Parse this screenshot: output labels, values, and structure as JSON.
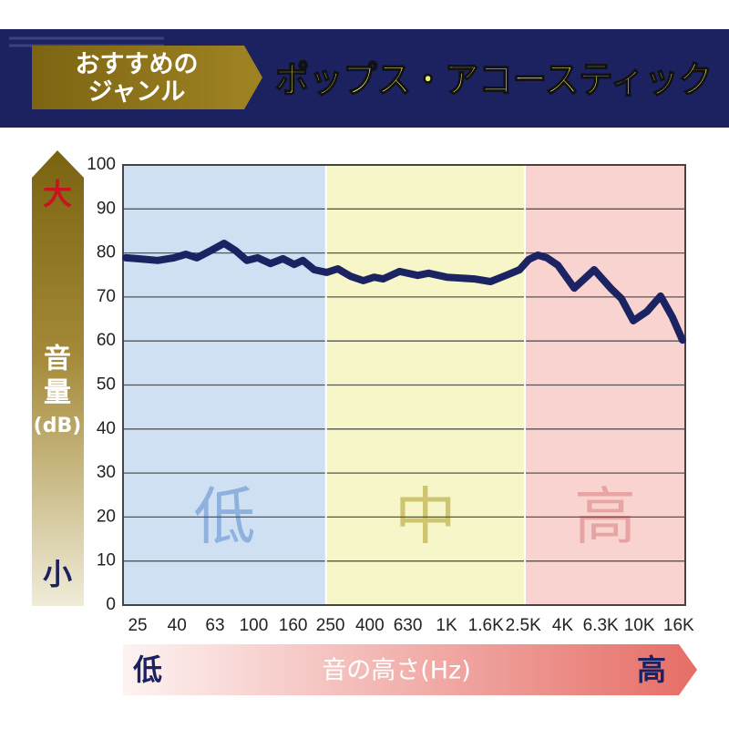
{
  "header": {
    "badge_lines": [
      "おすすめの",
      "ジャンル"
    ],
    "title": "ポップス・アコースティック"
  },
  "chart_data": {
    "type": "line",
    "xscale": "log",
    "y_high_label": "大",
    "y_low_label": "小",
    "y_label_lines": [
      "音",
      "量",
      "(dB)"
    ],
    "x_label": "音の高さ(Hz)",
    "x_low_label": "低",
    "x_high_label": "高",
    "xlim": [
      21,
      17300
    ],
    "ylim": [
      0,
      100
    ],
    "yticks": [
      0,
      10,
      20,
      30,
      40,
      50,
      60,
      70,
      80,
      90,
      100
    ],
    "xticks": [
      25,
      40,
      63,
      100,
      160,
      250,
      400,
      630,
      {
        "value": 1000,
        "label": "1K"
      },
      {
        "value": 1600,
        "label": "1.6K"
      },
      {
        "value": 2500,
        "label": "2.5K"
      },
      {
        "value": 4000,
        "label": "4K"
      },
      {
        "value": 6300,
        "label": "6.3K"
      },
      {
        "value": 10000,
        "label": "10K"
      },
      {
        "value": 16000,
        "label": "16K"
      }
    ],
    "grid": true,
    "bands": [
      {
        "label": "低",
        "from": 21,
        "to": 237,
        "color": "#cfe0f3",
        "text_color": "#8fb1e0"
      },
      {
        "label": "中",
        "from": 237,
        "to": 2550,
        "color": "#f6f6c8",
        "text_color": "#cfc570"
      },
      {
        "label": "高",
        "from": 2550,
        "to": 17300,
        "color": "#f8d3cf",
        "text_color": "#e8a3a3"
      }
    ],
    "x": [
      21.7,
      25,
      31.8,
      38.6,
      44.5,
      50.7,
      59.6,
      70.2,
      80.8,
      92,
      104.9,
      122,
      142,
      162,
      180,
      206,
      239,
      273,
      318,
      370,
      421,
      469,
      571,
      709,
      808,
      1004,
      1391,
      1691,
      2034,
      2394,
      2669,
      2975,
      3316,
      3778,
      4595,
      5833,
      7093,
      8080,
      9307,
      10952,
      12888,
      14846,
      16732
    ],
    "series": [
      {
        "color": "#1c2363",
        "values": [
          78.9,
          78.7,
          78.3,
          78.9,
          79.7,
          78.9,
          80.5,
          82.2,
          80.5,
          78.3,
          78.9,
          77.6,
          78.7,
          77.4,
          78.3,
          76.2,
          75.6,
          76.4,
          74.7,
          73.7,
          74.5,
          74.1,
          75.8,
          74.9,
          75.4,
          74.5,
          74.1,
          73.5,
          74.9,
          76.2,
          78.5,
          79.5,
          78.9,
          77.2,
          72.0,
          76.2,
          72.0,
          69.6,
          64.6,
          66.7,
          70.2,
          65.4,
          60.2
        ]
      }
    ]
  }
}
